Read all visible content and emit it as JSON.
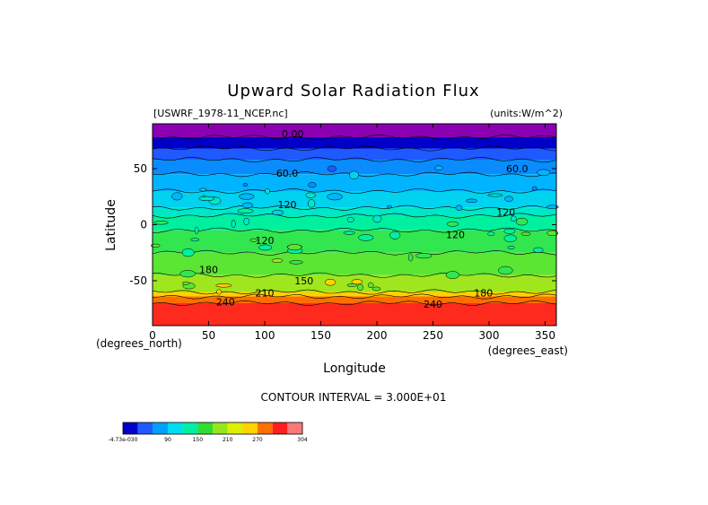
{
  "title": "Upward Solar Radiation Flux",
  "dataset_label": "[USWRF_1978-11_NCEP.nc]",
  "units_label": "(units:W/m^2)",
  "contour_interval_text": "CONTOUR INTERVAL = 3.000E+01",
  "chart_data": {
    "type": "heatmap",
    "title": "Upward Solar Radiation Flux",
    "xlabel": "Longitude",
    "ylabel": "Latitude",
    "x_unit_label": "(degrees_east)",
    "y_unit_label": "(degrees_north)",
    "xlim": [
      0,
      360
    ],
    "ylim": [
      -90,
      90
    ],
    "x_ticks": [
      0,
      50,
      100,
      150,
      200,
      250,
      300,
      350
    ],
    "y_ticks": [
      -50,
      0,
      50
    ],
    "grid": false,
    "latitude_bands": [
      {
        "lat_min": 78,
        "lat_max": 90,
        "value": 0
      },
      {
        "lat_min": 68,
        "lat_max": 78,
        "value": 15
      },
      {
        "lat_min": 58,
        "lat_max": 68,
        "value": 45
      },
      {
        "lat_min": 45,
        "lat_max": 58,
        "value": 60
      },
      {
        "lat_min": 30,
        "lat_max": 45,
        "value": 75
      },
      {
        "lat_min": 15,
        "lat_max": 30,
        "value": 90
      },
      {
        "lat_min": 8,
        "lat_max": 15,
        "value": 105
      },
      {
        "lat_min": -5,
        "lat_max": 8,
        "value": 120
      },
      {
        "lat_min": -25,
        "lat_max": -5,
        "value": 135
      },
      {
        "lat_min": -45,
        "lat_max": -25,
        "value": 150
      },
      {
        "lat_min": -60,
        "lat_max": -45,
        "value": 165
      },
      {
        "lat_min": -64,
        "lat_max": -60,
        "value": 200
      },
      {
        "lat_min": -70,
        "lat_max": -64,
        "value": 240
      },
      {
        "lat_min": -90,
        "lat_max": -70,
        "value": 285
      }
    ],
    "contour_labels": [
      {
        "text": "0.00",
        "lon": 125,
        "lat": 78
      },
      {
        "text": "60.0",
        "lon": 120,
        "lat": 43
      },
      {
        "text": "60.0",
        "lon": 325,
        "lat": 47
      },
      {
        "text": "120",
        "lon": 120,
        "lat": 15
      },
      {
        "text": "120",
        "lon": 315,
        "lat": 8
      },
      {
        "text": "120",
        "lon": 100,
        "lat": -17
      },
      {
        "text": "120",
        "lon": 270,
        "lat": -12
      },
      {
        "text": "180",
        "lon": 50,
        "lat": -43
      },
      {
        "text": "150",
        "lon": 135,
        "lat": -53
      },
      {
        "text": "180",
        "lon": 295,
        "lat": -64
      },
      {
        "text": "210",
        "lon": 100,
        "lat": -64
      },
      {
        "text": "240",
        "lon": 65,
        "lat": -72
      },
      {
        "text": "240",
        "lon": 250,
        "lat": -74
      }
    ],
    "colorbar": {
      "tick_labels": [
        "-4.73e-030",
        "90",
        "150",
        "210",
        "270",
        "304"
      ],
      "colors": [
        "#0000c8",
        "#1e5aff",
        "#00a0ff",
        "#00dcf0",
        "#00f0a0",
        "#32dc32",
        "#96e61e",
        "#dcf000",
        "#ffd200",
        "#ff6e00",
        "#ff1e1e",
        "#ff7878"
      ]
    }
  }
}
